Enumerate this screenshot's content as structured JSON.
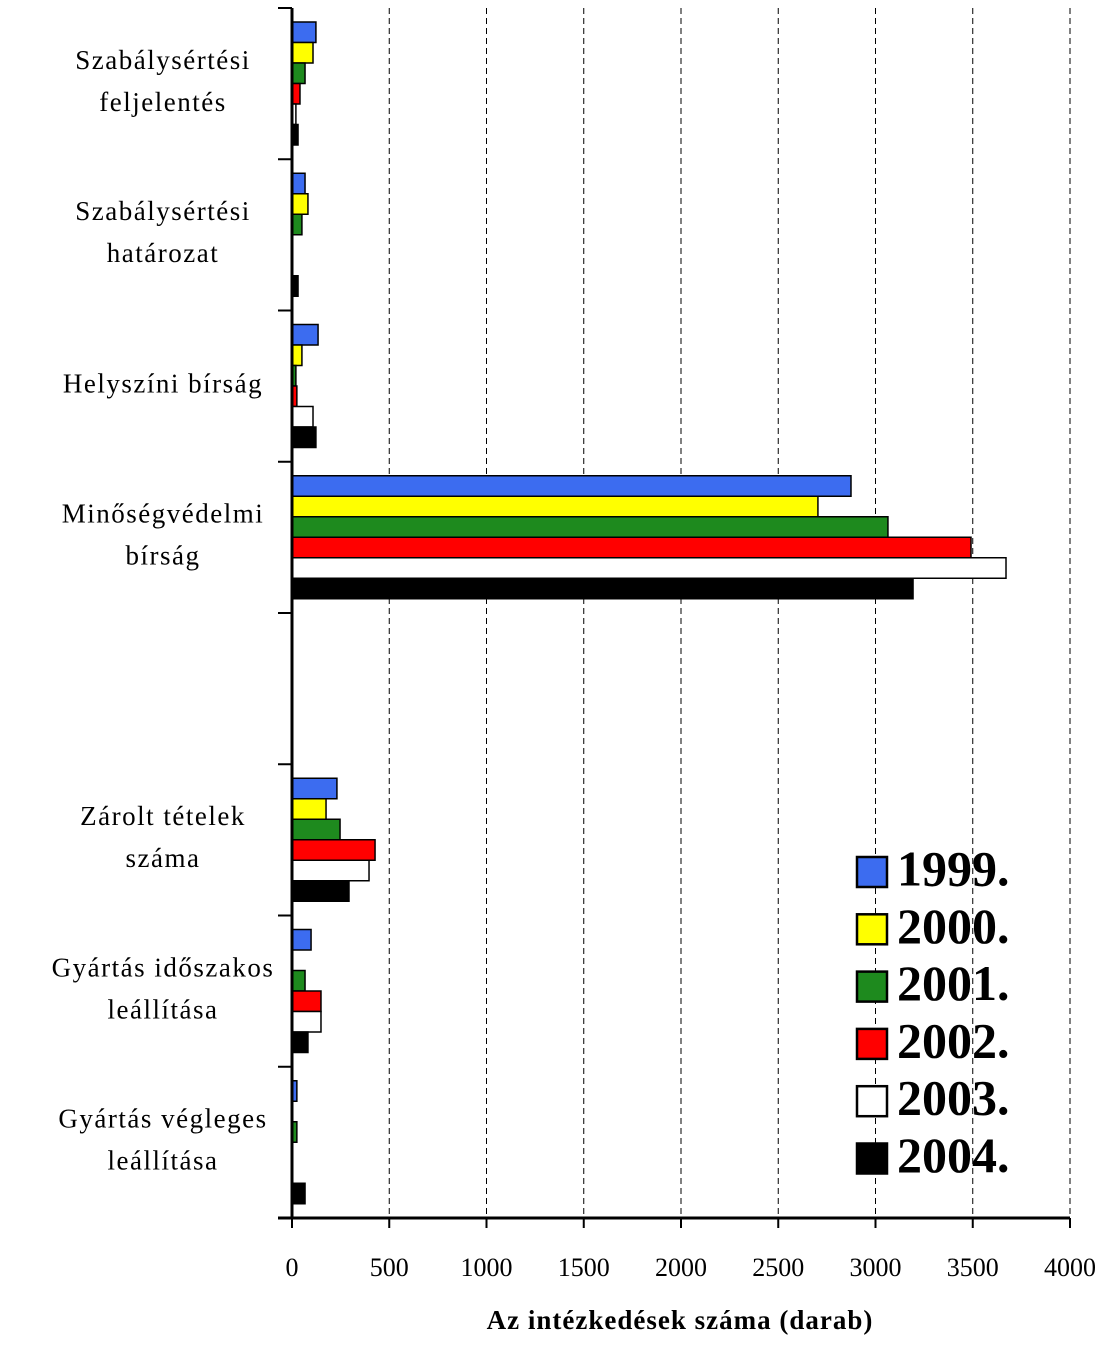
{
  "chart_data": {
    "type": "hbar",
    "xlabel": "Az intézkedések száma (darab)",
    "categories": [
      [
        "Szabálysértési",
        "feljelentés"
      ],
      [
        "Szabálysértési",
        "határozat"
      ],
      [
        "Helyszíni bírság"
      ],
      [
        "Minőségvédelmi",
        "bírság"
      ],
      null,
      [
        "Zárolt tételek",
        "száma"
      ],
      [
        "Gyártás időszakos",
        "leállítása"
      ],
      [
        "Gyártás végleges",
        "leállítása"
      ]
    ],
    "series": [
      {
        "name": "1999.",
        "color": "#3c6cf0",
        "values": [
          123,
          67,
          134,
          2874,
          null,
          231,
          98,
          25
        ]
      },
      {
        "name": "2000.",
        "color": "#ffff00",
        "values": [
          108,
          82,
          51,
          2704,
          null,
          175,
          0,
          0
        ]
      },
      {
        "name": "2001.",
        "color": "#1e8a1e",
        "values": [
          67,
          51,
          20,
          3064,
          null,
          247,
          67,
          25
        ]
      },
      {
        "name": "2002.",
        "color": "#ff0000",
        "values": [
          41,
          0,
          25,
          3491,
          null,
          427,
          149,
          0
        ]
      },
      {
        "name": "2003.",
        "color": "#ffffff",
        "values": [
          20,
          0,
          108,
          3671,
          null,
          396,
          149,
          0
        ]
      },
      {
        "name": "2004.",
        "color": "#000000",
        "values": [
          31,
          31,
          123,
          3193,
          null,
          293,
          82,
          67
        ]
      }
    ],
    "xlim": [
      0,
      4000
    ],
    "xticks": [
      0,
      500,
      1000,
      1500,
      2000,
      2500,
      3000,
      3500,
      4000
    ],
    "grid": true,
    "legend": "lower right"
  }
}
